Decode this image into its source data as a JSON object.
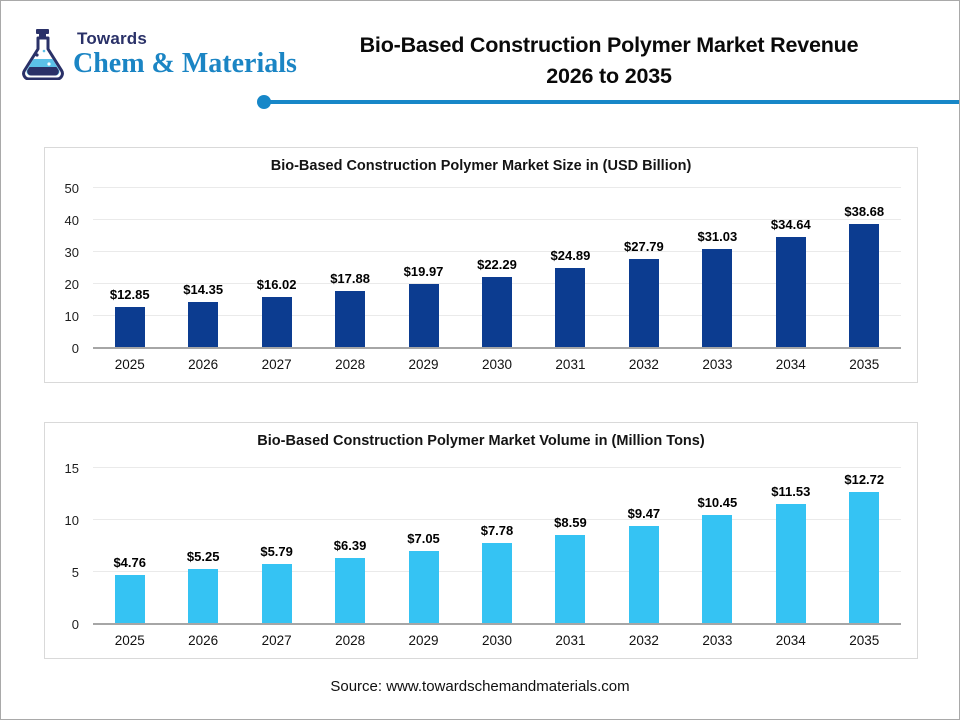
{
  "header": {
    "logo": {
      "line1": "Towards",
      "line2": "Chem & Materials",
      "navy": "#2A3168",
      "blue": "#1B85C4"
    },
    "title_line1": "Bio-Based Construction Polymer Market Revenue",
    "title_line2": "2026 to 2035",
    "accent_color": "#1787C8"
  },
  "chart_data": [
    {
      "type": "bar",
      "title": "Bio-Based Construction Polymer Market Size in (USD Billion)",
      "categories": [
        "2025",
        "2026",
        "2027",
        "2028",
        "2029",
        "2030",
        "2031",
        "2032",
        "2033",
        "2034",
        "2035"
      ],
      "values": [
        12.85,
        14.35,
        16.02,
        17.88,
        19.97,
        22.29,
        24.89,
        27.79,
        31.03,
        34.64,
        38.68
      ],
      "labels": [
        "$12.85",
        "$14.35",
        "$16.02",
        "$17.88",
        "$19.97",
        "$22.29",
        "$24.89",
        "$27.79",
        "$31.03",
        "$34.64",
        "$38.68"
      ],
      "ylim": [
        0,
        50
      ],
      "y_ticks": [
        0,
        10,
        20,
        30,
        40,
        50
      ],
      "bar_color": "#0C3C90",
      "grid": true,
      "legend": "none"
    },
    {
      "type": "bar",
      "title": "Bio-Based Construction Polymer Market Volume in (Million Tons)",
      "categories": [
        "2025",
        "2026",
        "2027",
        "2028",
        "2029",
        "2030",
        "2031",
        "2032",
        "2033",
        "2034",
        "2035"
      ],
      "values": [
        4.76,
        5.25,
        5.79,
        6.39,
        7.05,
        7.78,
        8.59,
        9.47,
        10.45,
        11.53,
        12.72
      ],
      "labels": [
        "$4.76",
        "$5.25",
        "$5.79",
        "$6.39",
        "$7.05",
        "$7.78",
        "$8.59",
        "$9.47",
        "$10.45",
        "$11.53",
        "$12.72"
      ],
      "ylim": [
        0,
        15
      ],
      "y_ticks": [
        0,
        5,
        10,
        15
      ],
      "bar_color": "#35C3F3",
      "grid": true,
      "legend": "none"
    }
  ],
  "footer": {
    "source": "Source: www.towardschemandmaterials.com"
  }
}
